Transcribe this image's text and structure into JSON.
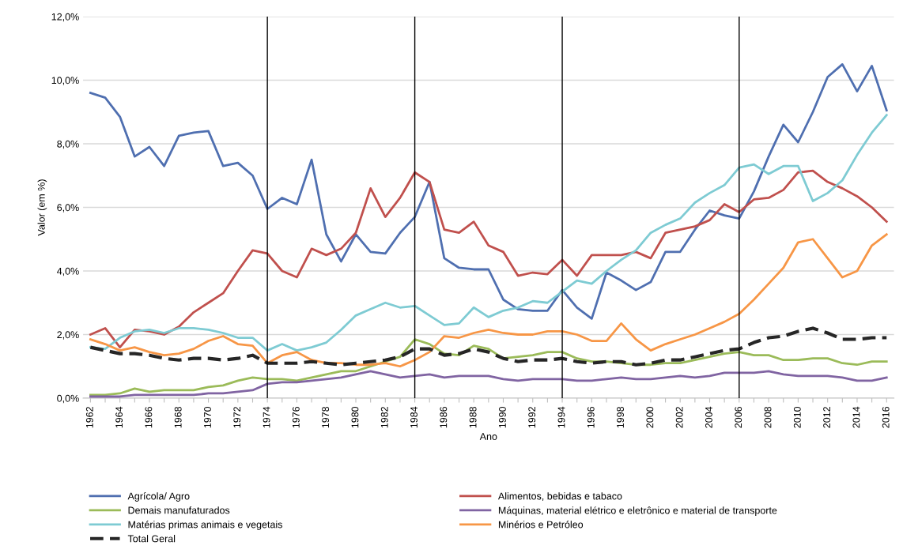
{
  "chart_data": {
    "type": "line",
    "xlabel": "Ano",
    "ylabel": "Valor (em %)",
    "categories": [
      "1962",
      null,
      "1964",
      null,
      "1966",
      null,
      "1968",
      null,
      "1970",
      null,
      "1972",
      null,
      "1974",
      null,
      "1976",
      null,
      "1978",
      null,
      "1980",
      null,
      "1982",
      null,
      "1984",
      null,
      "1986",
      null,
      "1988",
      null,
      "1990",
      null,
      "1992",
      null,
      "1994",
      null,
      "1996",
      null,
      "1998",
      null,
      "2000",
      null,
      "2002",
      null,
      "2004",
      null,
      "2006",
      null,
      "2008",
      null,
      "2010",
      null,
      "2012",
      null,
      "2014",
      null,
      "2016"
    ],
    "ylim": [
      0,
      12
    ],
    "yticks": [
      {
        "value": 0,
        "label": "0,0%"
      },
      {
        "value": 2,
        "label": "2,0%"
      },
      {
        "value": 4,
        "label": "4,0%"
      },
      {
        "value": 6,
        "label": "6,0%"
      },
      {
        "value": 8,
        "label": "8,0%"
      },
      {
        "value": 10,
        "label": "10,0%"
      },
      {
        "value": 12,
        "label": "12,0%"
      }
    ],
    "grid": "y",
    "legend": "bottom",
    "marker": "none",
    "ref_lines": [
      {
        "axis": "x",
        "value": "1974",
        "color": "#000000"
      },
      {
        "axis": "x",
        "value": "1984",
        "color": "#000000"
      },
      {
        "axis": "x",
        "value": "1994",
        "color": "#000000"
      },
      {
        "axis": "x",
        "value": "2006",
        "color": "#000000"
      }
    ],
    "series": [
      {
        "name": "Agrícola/ Agro",
        "color": "#4f6fb0",
        "values": [
          9.6,
          9.45,
          8.85,
          7.6,
          7.9,
          7.3,
          8.25,
          8.35,
          8.4,
          7.3,
          7.4,
          7.0,
          5.95,
          6.3,
          6.1,
          7.5,
          5.15,
          4.3,
          5.15,
          4.6,
          4.55,
          5.2,
          5.7,
          6.8,
          4.4,
          4.1,
          4.05,
          4.05,
          3.1,
          2.8,
          2.75,
          2.75,
          3.4,
          2.85,
          2.5,
          3.95,
          3.7,
          3.4,
          3.65,
          4.6,
          4.6,
          5.3,
          5.9,
          5.75,
          5.65,
          6.5,
          7.6,
          8.6,
          8.05,
          9.0,
          10.1,
          10.5,
          9.65,
          10.45,
          9.05
        ]
      },
      {
        "name": "Alimentos, bebidas e tabaco",
        "color": "#c0504d",
        "values": [
          2.0,
          2.2,
          1.6,
          2.15,
          2.1,
          2.0,
          2.25,
          2.7,
          3.0,
          3.3,
          4.0,
          4.65,
          4.55,
          4.0,
          3.8,
          4.7,
          4.5,
          4.7,
          5.2,
          6.6,
          5.7,
          6.3,
          7.1,
          6.8,
          5.3,
          5.2,
          5.55,
          4.8,
          4.6,
          3.85,
          3.95,
          3.9,
          4.35,
          3.85,
          4.5,
          4.5,
          4.5,
          4.6,
          4.4,
          5.2,
          5.3,
          5.4,
          5.6,
          6.1,
          5.85,
          6.25,
          6.3,
          6.55,
          7.1,
          7.15,
          6.8,
          6.6,
          6.35,
          6.0,
          5.55
        ]
      },
      {
        "name": "Demais manufaturados",
        "color": "#9bbb59",
        "values": [
          0.1,
          0.1,
          0.15,
          0.3,
          0.2,
          0.25,
          0.25,
          0.25,
          0.35,
          0.4,
          0.55,
          0.65,
          0.6,
          0.6,
          0.55,
          0.65,
          0.75,
          0.85,
          0.85,
          1.0,
          1.15,
          1.3,
          1.85,
          1.7,
          1.4,
          1.35,
          1.65,
          1.55,
          1.25,
          1.3,
          1.35,
          1.45,
          1.45,
          1.25,
          1.15,
          1.15,
          1.1,
          1.05,
          1.05,
          1.1,
          1.1,
          1.2,
          1.3,
          1.4,
          1.45,
          1.35,
          1.35,
          1.2,
          1.2,
          1.25,
          1.25,
          1.1,
          1.05,
          1.15,
          1.15
        ]
      },
      {
        "name": "Máquinas, material elétrico e eletrônico e material de transporte",
        "color": "#8064a2",
        "values": [
          0.05,
          0.05,
          0.05,
          0.1,
          0.1,
          0.1,
          0.1,
          0.1,
          0.15,
          0.15,
          0.2,
          0.25,
          0.45,
          0.5,
          0.5,
          0.55,
          0.6,
          0.65,
          0.75,
          0.85,
          0.75,
          0.65,
          0.7,
          0.75,
          0.65,
          0.7,
          0.7,
          0.7,
          0.6,
          0.55,
          0.6,
          0.6,
          0.6,
          0.55,
          0.55,
          0.6,
          0.65,
          0.6,
          0.6,
          0.65,
          0.7,
          0.65,
          0.7,
          0.8,
          0.8,
          0.8,
          0.85,
          0.75,
          0.7,
          0.7,
          0.7,
          0.65,
          0.55,
          0.55,
          0.65
        ]
      },
      {
        "name": "Matérias primas animais e vegetais",
        "color": "#7ecbd3",
        "values": [
          1.6,
          1.55,
          1.9,
          2.1,
          2.15,
          2.05,
          2.2,
          2.2,
          2.15,
          2.05,
          1.9,
          1.9,
          1.5,
          1.7,
          1.5,
          1.6,
          1.75,
          2.15,
          2.6,
          2.8,
          3.0,
          2.85,
          2.9,
          2.6,
          2.3,
          2.35,
          2.85,
          2.55,
          2.75,
          2.85,
          3.05,
          3.0,
          3.35,
          3.7,
          3.6,
          4.0,
          4.35,
          4.65,
          5.2,
          5.45,
          5.65,
          6.15,
          6.45,
          6.7,
          7.25,
          7.35,
          7.05,
          7.3,
          7.3,
          6.2,
          6.45,
          6.85,
          7.65,
          8.35,
          8.9
        ]
      },
      {
        "name": "Minérios e Petróleo",
        "color": "#f79646",
        "values": [
          1.85,
          1.7,
          1.5,
          1.6,
          1.45,
          1.35,
          1.4,
          1.55,
          1.8,
          1.95,
          1.7,
          1.65,
          1.1,
          1.35,
          1.45,
          1.2,
          1.1,
          1.1,
          1.05,
          1.05,
          1.1,
          1.0,
          1.2,
          1.45,
          1.95,
          1.9,
          2.05,
          2.15,
          2.05,
          2.0,
          2.0,
          2.1,
          2.1,
          2.0,
          1.8,
          1.8,
          2.35,
          1.85,
          1.5,
          1.7,
          1.85,
          2.0,
          2.2,
          2.4,
          2.65,
          3.1,
          3.6,
          4.1,
          4.9,
          5.0,
          4.4,
          3.8,
          4.0,
          4.8,
          5.15
        ]
      },
      {
        "name": "Total Geral",
        "color": "#262626",
        "line_style": "dashed",
        "values": [
          1.6,
          1.5,
          1.4,
          1.4,
          1.35,
          1.25,
          1.2,
          1.25,
          1.25,
          1.2,
          1.25,
          1.35,
          1.1,
          1.1,
          1.1,
          1.15,
          1.1,
          1.05,
          1.1,
          1.15,
          1.2,
          1.3,
          1.55,
          1.55,
          1.35,
          1.4,
          1.55,
          1.45,
          1.25,
          1.15,
          1.2,
          1.2,
          1.25,
          1.15,
          1.1,
          1.15,
          1.15,
          1.05,
          1.1,
          1.2,
          1.2,
          1.3,
          1.4,
          1.5,
          1.55,
          1.75,
          1.9,
          1.95,
          2.1,
          2.2,
          2.05,
          1.85,
          1.85,
          1.9,
          1.9
        ]
      }
    ]
  }
}
